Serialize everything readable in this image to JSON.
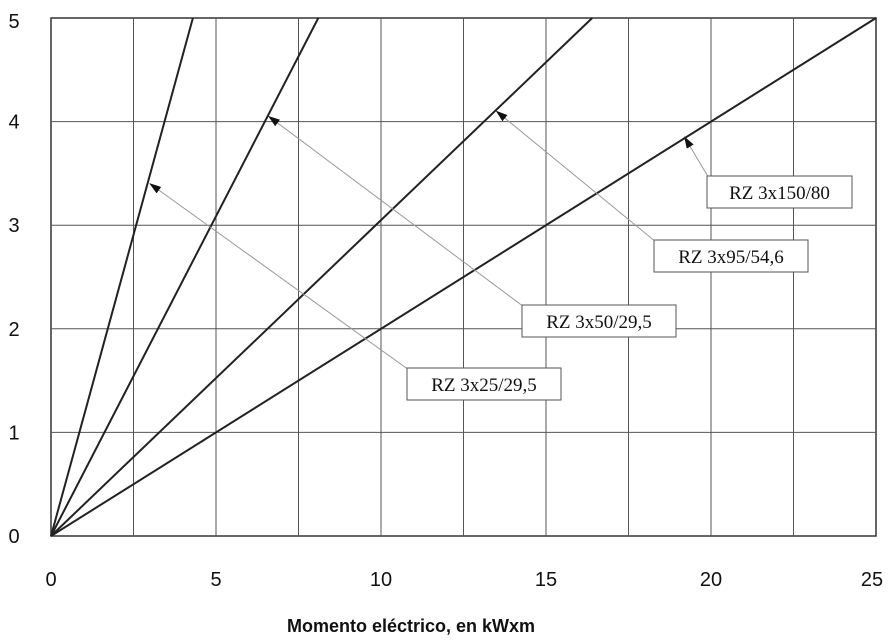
{
  "chart_data": {
    "type": "line",
    "xlabel": "Momento eléctrico, en kWxm",
    "ylabel": "",
    "xlim": [
      0,
      25
    ],
    "ylim": [
      0,
      5
    ],
    "xticks": [
      "0",
      "5",
      "10",
      "15",
      "20",
      "25"
    ],
    "yticks": [
      "0",
      "1",
      "2",
      "3",
      "4",
      "5"
    ],
    "grid": true,
    "series": [
      {
        "name": "RZ 3x25/29,5",
        "x": [
          0,
          4.3
        ],
        "y": [
          0,
          5
        ]
      },
      {
        "name": "RZ 3x50/29,5",
        "x": [
          0,
          8.1
        ],
        "y": [
          0,
          5
        ]
      },
      {
        "name": "RZ 3x95/54,6",
        "x": [
          0,
          16.4
        ],
        "y": [
          0,
          5
        ]
      },
      {
        "name": "RZ 3x150/80",
        "x": [
          0,
          25
        ],
        "y": [
          0,
          5
        ]
      }
    ],
    "annotations": [
      {
        "series": "RZ 3x25/29,5",
        "text": "RZ 3x25/29,5",
        "arrow_to": [
          3.0,
          3.4
        ]
      },
      {
        "series": "RZ 3x50/29,5",
        "text": "RZ 3x50/29,5",
        "arrow_to": [
          6.6,
          4.05
        ]
      },
      {
        "series": "RZ 3x95/54,6",
        "text": "RZ 3x95/54,6",
        "arrow_to": [
          13.5,
          4.1
        ]
      },
      {
        "series": "RZ 3x150/80",
        "text": "RZ 3x150/80",
        "arrow_to": [
          19.2,
          3.85
        ]
      }
    ]
  }
}
